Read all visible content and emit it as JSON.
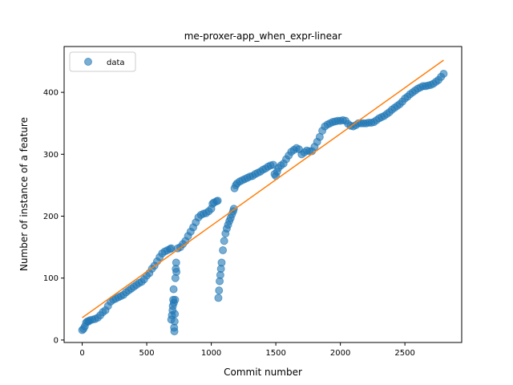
{
  "chart_data": {
    "type": "scatter",
    "title": "me-proxer-app_when_expr-linear",
    "xlabel": "Commit number",
    "ylabel": "Number of instance of a feature",
    "xlim": [
      -140,
      2940
    ],
    "ylim": [
      -4,
      474
    ],
    "x_ticks": [
      0,
      500,
      1000,
      1500,
      2000,
      2500
    ],
    "y_ticks": [
      0,
      100,
      200,
      300,
      400
    ],
    "grid": false,
    "legend": {
      "position": "top-left",
      "entries": [
        "data"
      ]
    },
    "colors": {
      "data": "#1f77b4",
      "fit": "#ff7f0e"
    },
    "series": [
      {
        "name": "data",
        "kind": "scatter",
        "points": [
          [
            0,
            16
          ],
          [
            10,
            18
          ],
          [
            20,
            22
          ],
          [
            30,
            28
          ],
          [
            40,
            30
          ],
          [
            50,
            30
          ],
          [
            60,
            32
          ],
          [
            80,
            33
          ],
          [
            100,
            34
          ],
          [
            120,
            36
          ],
          [
            140,
            40
          ],
          [
            160,
            45
          ],
          [
            180,
            48
          ],
          [
            200,
            55
          ],
          [
            220,
            62
          ],
          [
            240,
            65
          ],
          [
            260,
            67
          ],
          [
            280,
            69
          ],
          [
            300,
            71
          ],
          [
            320,
            73
          ],
          [
            340,
            77
          ],
          [
            360,
            80
          ],
          [
            380,
            83
          ],
          [
            400,
            86
          ],
          [
            420,
            89
          ],
          [
            440,
            92
          ],
          [
            460,
            94
          ],
          [
            480,
            98
          ],
          [
            500,
            104
          ],
          [
            520,
            108
          ],
          [
            540,
            115
          ],
          [
            560,
            120
          ],
          [
            580,
            127
          ],
          [
            600,
            134
          ],
          [
            620,
            140
          ],
          [
            640,
            143
          ],
          [
            660,
            145
          ],
          [
            680,
            147
          ],
          [
            690,
            148
          ],
          [
            690,
            33
          ],
          [
            695,
            40
          ],
          [
            700,
            48
          ],
          [
            702,
            55
          ],
          [
            705,
            65
          ],
          [
            708,
            82
          ],
          [
            710,
            60
          ],
          [
            712,
            20
          ],
          [
            714,
            14
          ],
          [
            716,
            30
          ],
          [
            718,
            42
          ],
          [
            720,
            65
          ],
          [
            722,
            100
          ],
          [
            725,
            115
          ],
          [
            728,
            125
          ],
          [
            730,
            110
          ],
          [
            740,
            148
          ],
          [
            760,
            150
          ],
          [
            780,
            155
          ],
          [
            800,
            160
          ],
          [
            820,
            168
          ],
          [
            840,
            175
          ],
          [
            860,
            182
          ],
          [
            880,
            190
          ],
          [
            900,
            198
          ],
          [
            920,
            202
          ],
          [
            940,
            204
          ],
          [
            960,
            205
          ],
          [
            980,
            208
          ],
          [
            1000,
            212
          ],
          [
            1010,
            220
          ],
          [
            1020,
            222
          ],
          [
            1040,
            224
          ],
          [
            1050,
            225
          ],
          [
            1055,
            68
          ],
          [
            1060,
            80
          ],
          [
            1065,
            95
          ],
          [
            1070,
            105
          ],
          [
            1075,
            115
          ],
          [
            1080,
            125
          ],
          [
            1090,
            145
          ],
          [
            1100,
            160
          ],
          [
            1110,
            172
          ],
          [
            1120,
            180
          ],
          [
            1130,
            186
          ],
          [
            1140,
            192
          ],
          [
            1150,
            197
          ],
          [
            1160,
            203
          ],
          [
            1170,
            208
          ],
          [
            1175,
            212
          ],
          [
            1180,
            245
          ],
          [
            1190,
            250
          ],
          [
            1200,
            253
          ],
          [
            1220,
            256
          ],
          [
            1240,
            258
          ],
          [
            1260,
            260
          ],
          [
            1280,
            262
          ],
          [
            1300,
            264
          ],
          [
            1320,
            265
          ],
          [
            1340,
            268
          ],
          [
            1360,
            270
          ],
          [
            1380,
            272
          ],
          [
            1400,
            275
          ],
          [
            1420,
            277
          ],
          [
            1440,
            280
          ],
          [
            1460,
            282
          ],
          [
            1480,
            283
          ],
          [
            1490,
            268
          ],
          [
            1500,
            265
          ],
          [
            1510,
            272
          ],
          [
            1520,
            278
          ],
          [
            1540,
            282
          ],
          [
            1560,
            285
          ],
          [
            1580,
            292
          ],
          [
            1600,
            298
          ],
          [
            1620,
            304
          ],
          [
            1640,
            307
          ],
          [
            1660,
            310
          ],
          [
            1680,
            308
          ],
          [
            1700,
            300
          ],
          [
            1720,
            303
          ],
          [
            1740,
            306
          ],
          [
            1760,
            305
          ],
          [
            1780,
            305
          ],
          [
            1800,
            312
          ],
          [
            1820,
            320
          ],
          [
            1840,
            328
          ],
          [
            1860,
            338
          ],
          [
            1880,
            345
          ],
          [
            1900,
            348
          ],
          [
            1920,
            350
          ],
          [
            1940,
            352
          ],
          [
            1960,
            353
          ],
          [
            1980,
            354
          ],
          [
            2000,
            354
          ],
          [
            2020,
            355
          ],
          [
            2040,
            354
          ],
          [
            2060,
            349
          ],
          [
            2080,
            346
          ],
          [
            2100,
            345
          ],
          [
            2120,
            347
          ],
          [
            2140,
            350
          ],
          [
            2160,
            350
          ],
          [
            2180,
            350
          ],
          [
            2200,
            350
          ],
          [
            2220,
            351
          ],
          [
            2240,
            351
          ],
          [
            2260,
            352
          ],
          [
            2280,
            355
          ],
          [
            2300,
            358
          ],
          [
            2320,
            360
          ],
          [
            2340,
            362
          ],
          [
            2360,
            365
          ],
          [
            2380,
            368
          ],
          [
            2400,
            372
          ],
          [
            2420,
            375
          ],
          [
            2440,
            378
          ],
          [
            2460,
            381
          ],
          [
            2480,
            385
          ],
          [
            2500,
            390
          ],
          [
            2520,
            393
          ],
          [
            2540,
            397
          ],
          [
            2560,
            400
          ],
          [
            2580,
            403
          ],
          [
            2600,
            406
          ],
          [
            2620,
            408
          ],
          [
            2640,
            410
          ],
          [
            2660,
            410
          ],
          [
            2680,
            411
          ],
          [
            2700,
            412
          ],
          [
            2720,
            414
          ],
          [
            2740,
            417
          ],
          [
            2760,
            420
          ],
          [
            2780,
            425
          ],
          [
            2800,
            430
          ]
        ]
      },
      {
        "name": "",
        "kind": "line",
        "points": [
          [
            0,
            36
          ],
          [
            2800,
            452
          ]
        ]
      }
    ]
  }
}
